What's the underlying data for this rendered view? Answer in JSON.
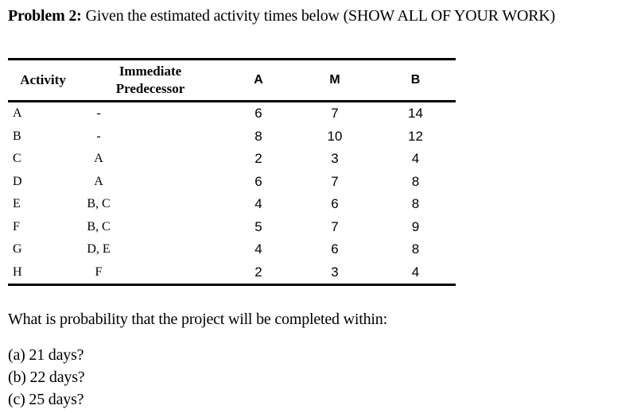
{
  "colors": {
    "text": "#000000",
    "background": "#ffffff"
  },
  "title": {
    "label": "Problem 2:",
    "text": "Given the estimated activity times below (SHOW ALL OF YOUR WORK)"
  },
  "table": {
    "headers": {
      "activity": "Activity",
      "predecessor": "Immediate Predecessor",
      "a": "A",
      "m": "M",
      "b": "B"
    },
    "rows": [
      {
        "activity": "A",
        "predecessor": "-",
        "a": "6",
        "m": "7",
        "b": "14"
      },
      {
        "activity": "B",
        "predecessor": "-",
        "a": "8",
        "m": "10",
        "b": "12"
      },
      {
        "activity": "C",
        "predecessor": "A",
        "a": "2",
        "m": "3",
        "b": "4"
      },
      {
        "activity": "D",
        "predecessor": "A",
        "a": "6",
        "m": "7",
        "b": "8"
      },
      {
        "activity": "E",
        "predecessor": "B, C",
        "a": "4",
        "m": "6",
        "b": "8"
      },
      {
        "activity": "F",
        "predecessor": "B, C",
        "a": "5",
        "m": "7",
        "b": "9"
      },
      {
        "activity": "G",
        "predecessor": "D, E",
        "a": "4",
        "m": "6",
        "b": "8"
      },
      {
        "activity": "H",
        "predecessor": "F",
        "a": "2",
        "m": "3",
        "b": "4"
      }
    ]
  },
  "question": "What is probability that the project will be completed within:",
  "options": [
    "(a) 21 days?",
    "(b) 22 days?",
    "(c) 25 days?"
  ]
}
